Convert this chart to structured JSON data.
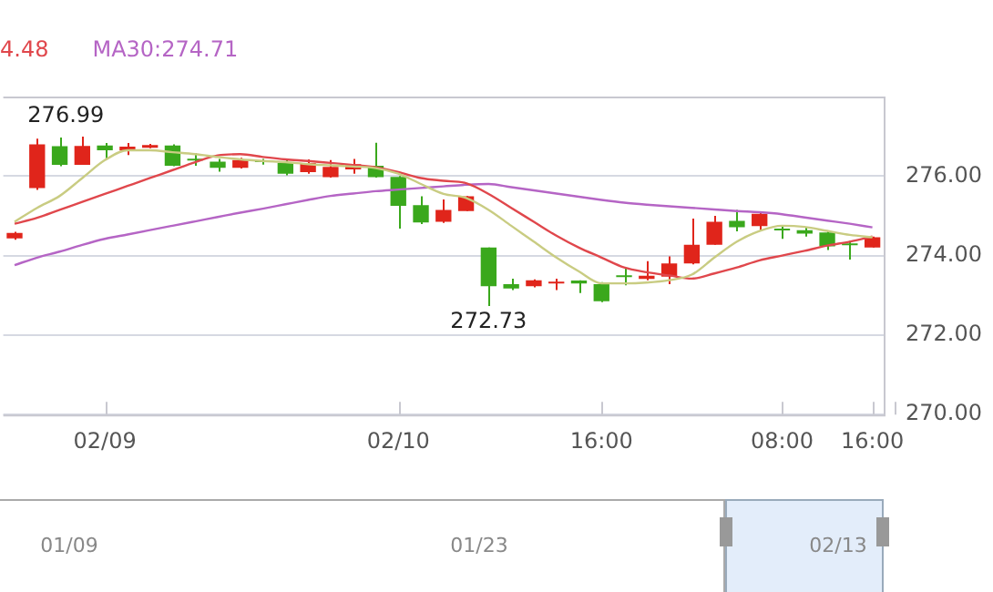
{
  "chart_data": {
    "type": "candlestick",
    "categories": [
      null,
      null,
      null,
      null,
      "02/09",
      null,
      null,
      null,
      null,
      null,
      null,
      null,
      null,
      null,
      null,
      null,
      null,
      "02/10",
      null,
      null,
      null,
      null,
      null,
      null,
      null,
      null,
      "16:00",
      null,
      null,
      null,
      null,
      null,
      null,
      null,
      "08:00",
      null,
      null,
      null,
      "16:00"
    ],
    "ohlc": [
      [
        274.43,
        274.6,
        274.4,
        274.57
      ],
      [
        275.7,
        276.94,
        275.65,
        276.8
      ],
      [
        276.75,
        276.97,
        276.25,
        276.28
      ],
      [
        276.28,
        276.99,
        276.28,
        276.76
      ],
      [
        276.77,
        276.83,
        276.43,
        276.65
      ],
      [
        276.64,
        276.83,
        276.53,
        276.74
      ],
      [
        276.71,
        276.81,
        276.7,
        276.78
      ],
      [
        276.77,
        276.8,
        276.25,
        276.26
      ],
      [
        276.41,
        276.58,
        276.26,
        276.39
      ],
      [
        276.36,
        276.43,
        276.11,
        276.21
      ],
      [
        276.21,
        276.46,
        276.19,
        276.4
      ],
      [
        276.37,
        276.43,
        276.29,
        276.35
      ],
      [
        276.33,
        276.4,
        276.02,
        276.06
      ],
      [
        276.1,
        276.42,
        276.06,
        276.33
      ],
      [
        275.97,
        276.4,
        275.96,
        276.23
      ],
      [
        276.17,
        276.43,
        276.06,
        276.3
      ],
      [
        276.26,
        276.84,
        275.96,
        275.97
      ],
      [
        275.98,
        276.0,
        274.68,
        275.25
      ],
      [
        275.27,
        275.49,
        274.79,
        274.83
      ],
      [
        274.85,
        275.41,
        274.82,
        275.15
      ],
      [
        275.12,
        275.5,
        275.12,
        275.49
      ],
      [
        274.2,
        274.2,
        272.73,
        273.23
      ],
      [
        273.28,
        273.42,
        273.13,
        273.17
      ],
      [
        273.23,
        273.4,
        273.2,
        273.38
      ],
      [
        273.3,
        273.42,
        273.13,
        273.33
      ],
      [
        273.37,
        273.38,
        273.06,
        273.3
      ],
      [
        273.28,
        273.33,
        272.83,
        272.85
      ],
      [
        273.48,
        273.68,
        273.25,
        273.46
      ],
      [
        273.41,
        273.86,
        273.38,
        273.49
      ],
      [
        273.47,
        273.98,
        273.28,
        273.8
      ],
      [
        273.8,
        274.93,
        273.78,
        274.27
      ],
      [
        274.27,
        275.0,
        274.27,
        274.85
      ],
      [
        274.87,
        275.15,
        274.61,
        274.71
      ],
      [
        274.74,
        275.08,
        274.61,
        275.05
      ],
      [
        274.65,
        274.77,
        274.42,
        274.63
      ],
      [
        274.64,
        274.7,
        274.48,
        274.55
      ],
      [
        274.58,
        274.61,
        274.14,
        274.23
      ],
      [
        274.28,
        274.37,
        273.9,
        274.26
      ],
      [
        274.2,
        274.48,
        274.2,
        274.46
      ]
    ],
    "colors": [
      "#e0251b",
      "#e0251b",
      "#3aa81c",
      "#e0251b",
      "#3aa81c",
      "#e0251b",
      "#e0251b",
      "#3aa81c",
      "#3aa81c",
      "#3aa81c",
      "#e0251b",
      "#3aa81c",
      "#3aa81c",
      "#e0251b",
      "#e0251b",
      "#e0251b",
      "#3aa81c",
      "#3aa81c",
      "#3aa81c",
      "#e0251b",
      "#e0251b",
      "#3aa81c",
      "#3aa81c",
      "#e0251b",
      "#e0251b",
      "#3aa81c",
      "#3aa81c",
      "#3aa81c",
      "#e0251b",
      "#e0251b",
      "#e0251b",
      "#e0251b",
      "#3aa81c",
      "#e0251b",
      "#3aa81c",
      "#3aa81c",
      "#3aa81c",
      "#3aa81c",
      "#e0251b"
    ],
    "series": [
      {
        "type": "line",
        "color": "#c9cc82",
        "values": [
          274.85,
          275.2,
          275.5,
          275.95,
          276.4,
          276.65,
          276.65,
          276.6,
          276.55,
          276.48,
          276.42,
          276.38,
          276.35,
          276.3,
          276.27,
          276.24,
          276.2,
          276.06,
          275.8,
          275.55,
          275.45,
          275.15,
          274.75,
          274.35,
          273.95,
          273.6,
          273.3,
          273.3,
          273.32,
          273.38,
          273.52,
          273.95,
          274.35,
          274.62,
          274.75,
          274.72,
          274.62,
          274.52,
          274.46
        ]
      },
      {
        "type": "line",
        "name": "4.48",
        "color": "#e0474c",
        "values": [
          274.8,
          274.95,
          275.15,
          275.35,
          275.55,
          275.75,
          275.95,
          276.15,
          276.35,
          276.52,
          276.55,
          276.48,
          276.42,
          276.38,
          276.33,
          276.28,
          276.22,
          276.1,
          275.95,
          275.88,
          275.82,
          275.55,
          275.2,
          274.85,
          274.5,
          274.2,
          273.95,
          273.7,
          273.58,
          273.5,
          273.42,
          273.55,
          273.7,
          273.88,
          274.0,
          274.12,
          274.25,
          274.35,
          274.48
        ]
      },
      {
        "type": "line",
        "name": "MA30:274.71",
        "color": "#b565c5",
        "values": [
          273.76,
          273.95,
          274.1,
          274.27,
          274.42,
          274.53,
          274.64,
          274.75,
          274.86,
          274.97,
          275.08,
          275.18,
          275.29,
          275.4,
          275.5,
          275.56,
          275.62,
          275.66,
          275.7,
          275.74,
          275.78,
          275.8,
          275.72,
          275.64,
          275.56,
          275.48,
          275.4,
          275.33,
          275.28,
          275.24,
          275.2,
          275.16,
          275.12,
          275.09,
          275.04,
          274.96,
          274.88,
          274.8,
          274.71
        ]
      }
    ],
    "ylim": [
      270,
      278
    ],
    "yticks": [
      {
        "value": 270,
        "label": "270.00"
      },
      {
        "value": 272,
        "label": "272.00"
      },
      {
        "value": 274,
        "label": "274.00"
      },
      {
        "value": 276,
        "label": "276.00"
      }
    ],
    "grid": "y",
    "legend": "top left",
    "marker": "none",
    "annotations": [
      {
        "text": "276.99",
        "y": 276.99
      },
      {
        "text": "272.73",
        "y": 272.73
      },
      "01/09",
      "01/23",
      "02/13"
    ]
  }
}
